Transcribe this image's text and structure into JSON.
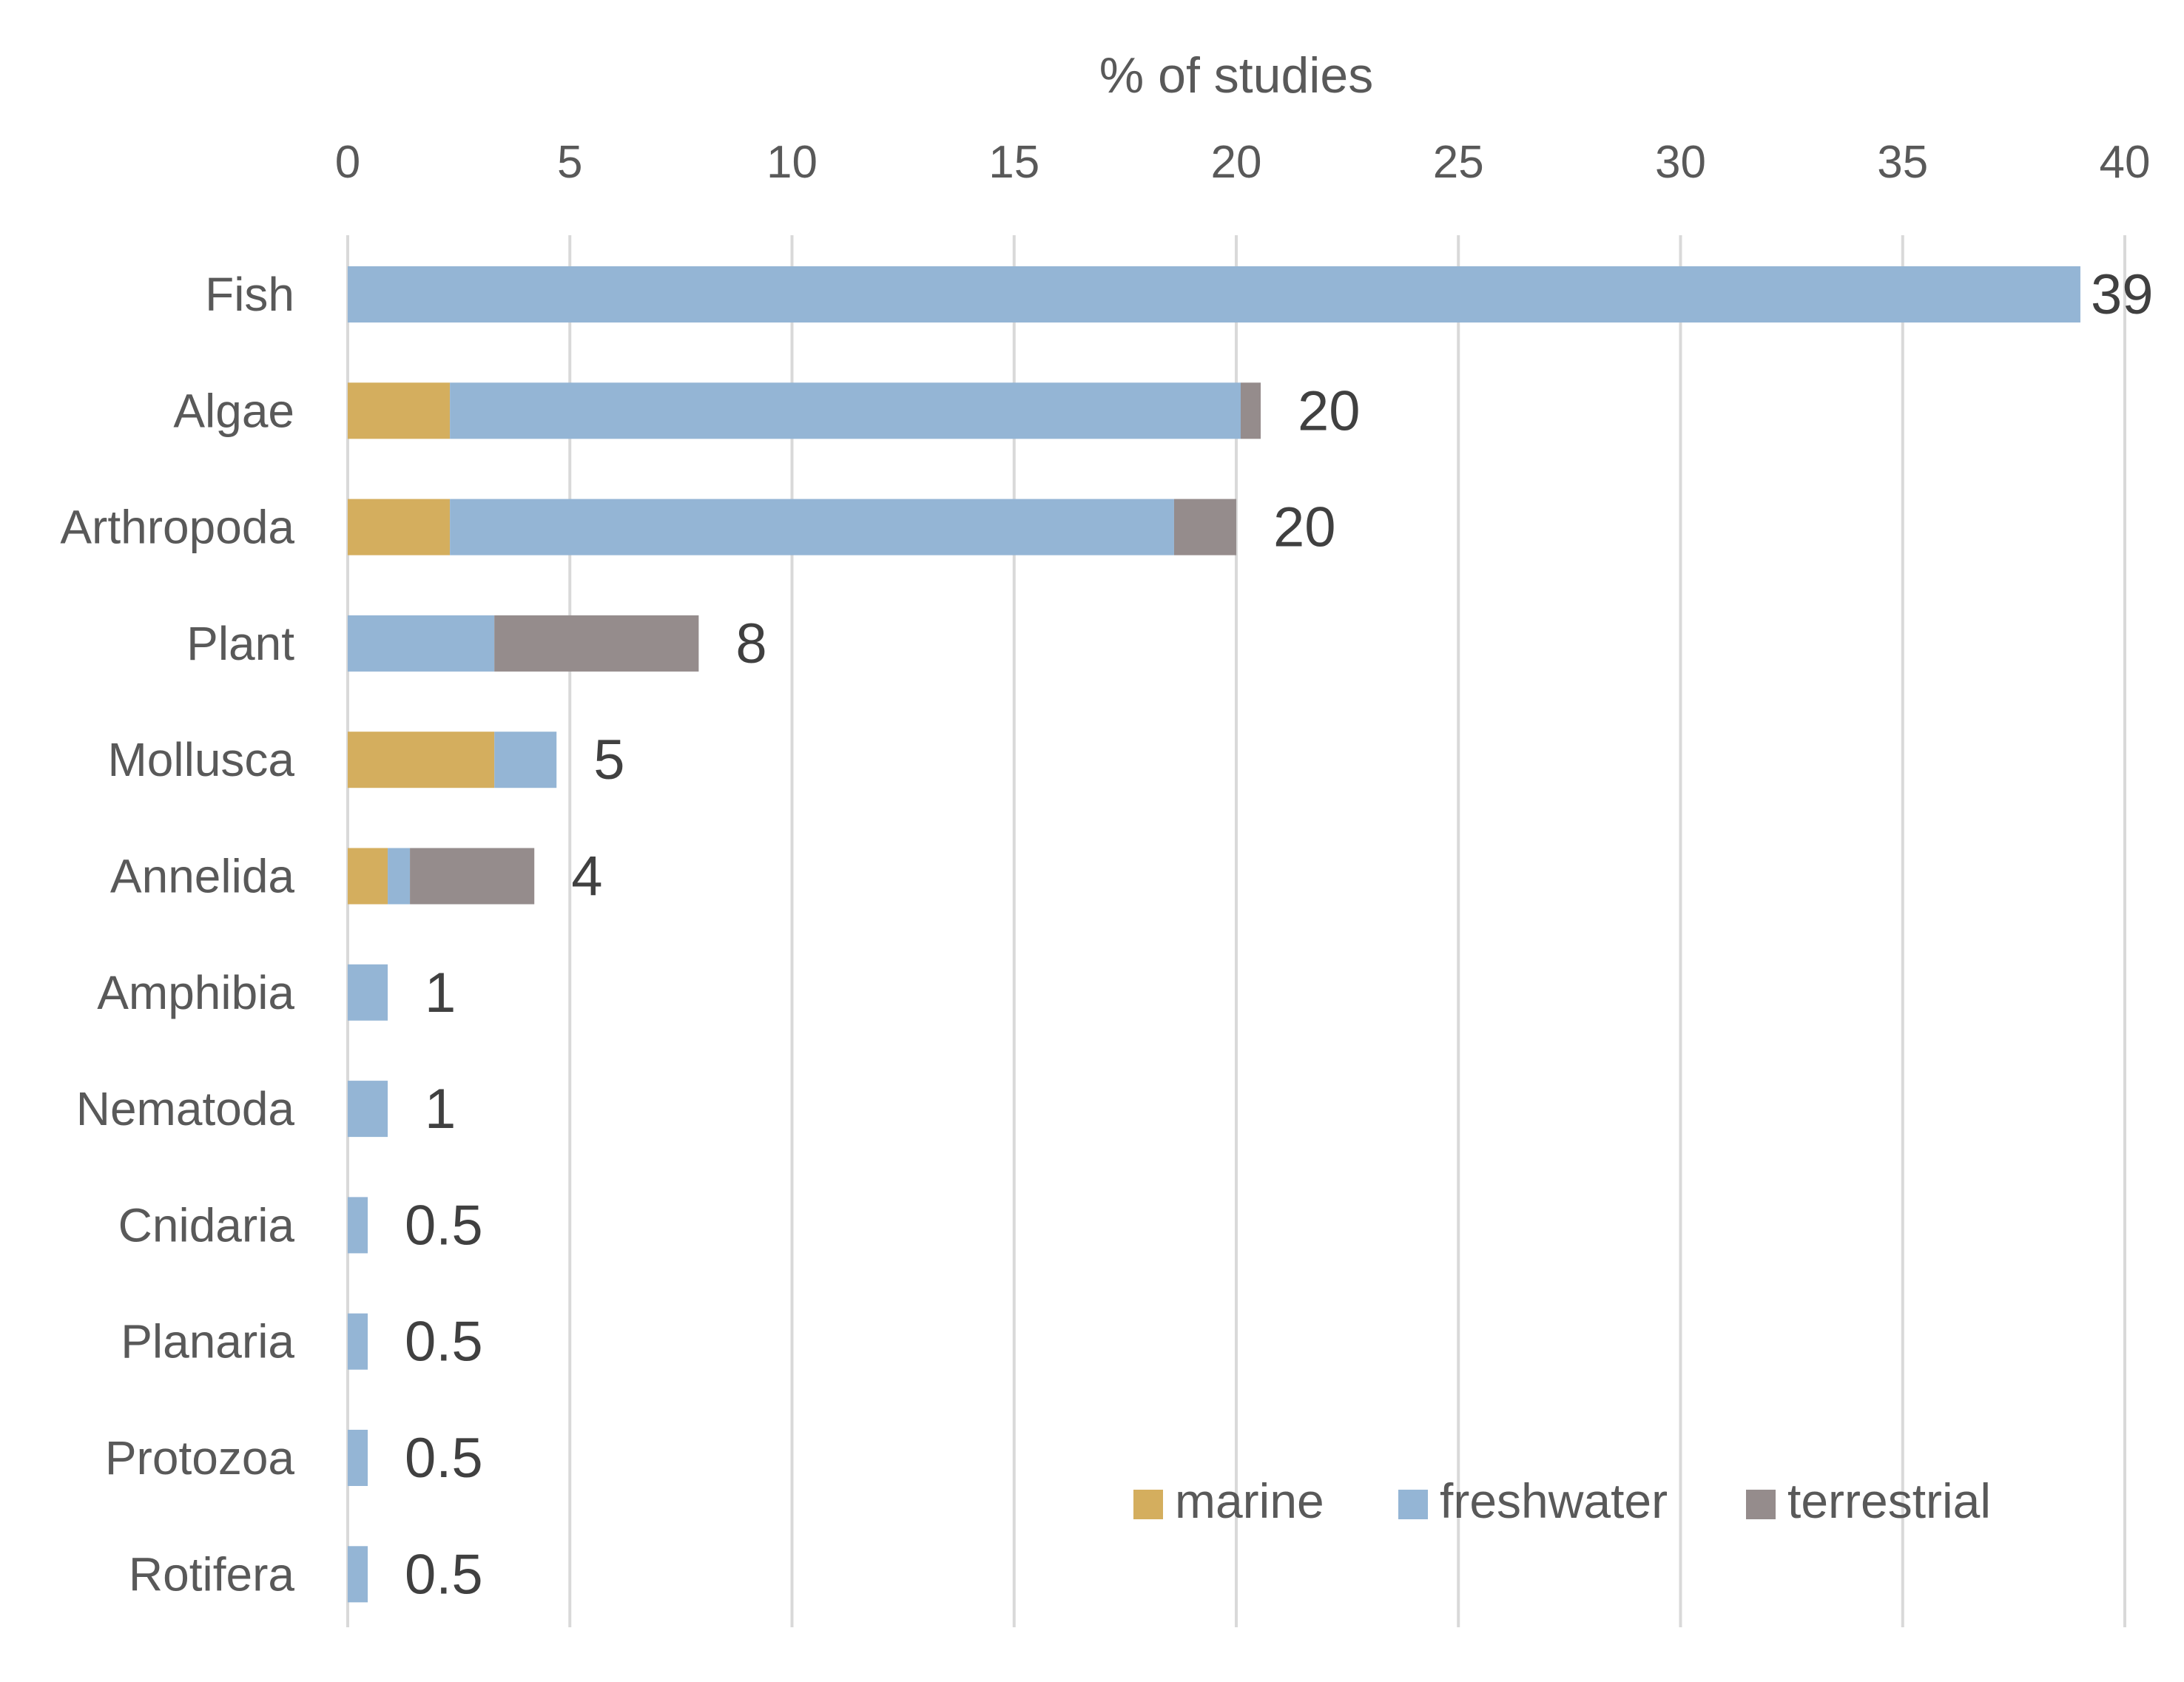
{
  "chart_data": {
    "type": "bar",
    "orientation": "horizontal",
    "stacked": true,
    "title": "% of studies",
    "xlabel": "% of studies",
    "ylabel": "",
    "xlim": [
      0,
      40
    ],
    "xticks": [
      "0",
      "5",
      "10",
      "15",
      "20",
      "25",
      "30",
      "35",
      "40"
    ],
    "grid": true,
    "categories": [
      "Fish",
      "Algae",
      "Arthropoda",
      "Plant",
      "Mollusca",
      "Annelida",
      "Amphibia",
      "Nematoda",
      "Cnidaria",
      "Planaria",
      "Protozoa",
      "Rotifera"
    ],
    "series": [
      {
        "name": "marine",
        "color": "#d4ae5e",
        "values": [
          0,
          2.3,
          2.3,
          0,
          3.3,
          0.9,
          0,
          0,
          0,
          0,
          0,
          0
        ]
      },
      {
        "name": "freshwater",
        "color": "#94b5d5",
        "values": [
          39,
          17.8,
          16.3,
          3.3,
          1.4,
          0.5,
          0.9,
          0.9,
          0.45,
          0.45,
          0.45,
          0.45
        ]
      },
      {
        "name": "terrestrial",
        "color": "#958c8c",
        "values": [
          0,
          0.45,
          1.4,
          4.6,
          0,
          2.8,
          0,
          0,
          0,
          0,
          0,
          0
        ]
      }
    ],
    "totals": [
      "39",
      "20",
      "20",
      "8",
      "5",
      "4",
      "1",
      "1",
      "0.5",
      "0.5",
      "0.5",
      "0.5"
    ],
    "legend": {
      "position": "bottom-right",
      "entries": [
        "marine",
        "freshwater",
        "terrestrial"
      ]
    }
  }
}
